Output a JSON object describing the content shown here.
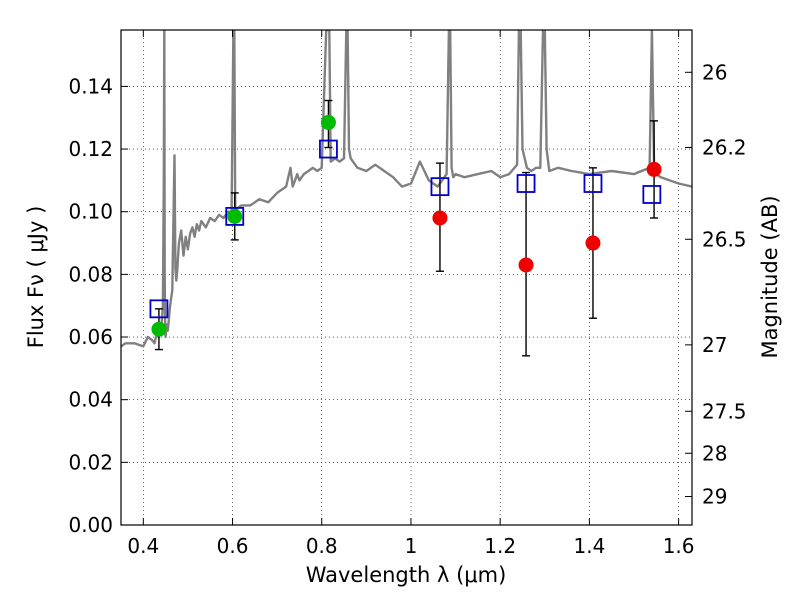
{
  "chart_data": {
    "type": "scatter",
    "xlabel": "Wavelength  λ (μm)",
    "ylabel": "Flux  Fν  ( μJy )",
    "y2label": "Magnitude (AB)",
    "xlim": [
      0.35,
      1.63
    ],
    "ylim": [
      0.0,
      0.158
    ],
    "grid": true,
    "xticks": [
      {
        "value": 0.4,
        "label": "0.4"
      },
      {
        "value": 0.6,
        "label": "0.6"
      },
      {
        "value": 0.8,
        "label": "0.8"
      },
      {
        "value": 1.0,
        "label": "1"
      },
      {
        "value": 1.2,
        "label": "1.2"
      },
      {
        "value": 1.4,
        "label": "1.4"
      },
      {
        "value": 1.6,
        "label": "1.6"
      }
    ],
    "yticks": [
      {
        "value": 0.0,
        "label": "0.00"
      },
      {
        "value": 0.02,
        "label": "0.02"
      },
      {
        "value": 0.04,
        "label": "0.04"
      },
      {
        "value": 0.06,
        "label": "0.06"
      },
      {
        "value": 0.08,
        "label": "0.08"
      },
      {
        "value": 0.1,
        "label": "0.10"
      },
      {
        "value": 0.12,
        "label": "0.12"
      },
      {
        "value": 0.14,
        "label": "0.14"
      }
    ],
    "y2ticks": [
      {
        "flux": 0.1445,
        "label": "26"
      },
      {
        "flux": 0.1205,
        "label": "26.2"
      },
      {
        "flux": 0.0912,
        "label": "26.5"
      },
      {
        "flux": 0.0575,
        "label": "27"
      },
      {
        "flux": 0.0363,
        "label": "27.5"
      },
      {
        "flux": 0.0229,
        "label": "28"
      },
      {
        "flux": 0.0091,
        "label": "29"
      }
    ],
    "series": [
      {
        "kind": "line",
        "color": "#808080",
        "x": [
          0.35,
          0.36,
          0.38,
          0.4,
          0.41,
          0.42,
          0.425,
          0.43,
          0.435,
          0.44,
          0.442,
          0.444,
          0.446,
          0.447,
          0.448,
          0.449,
          0.45,
          0.452,
          0.455,
          0.46,
          0.465,
          0.47,
          0.472,
          0.474,
          0.476,
          0.478,
          0.48,
          0.485,
          0.49,
          0.495,
          0.5,
          0.505,
          0.51,
          0.515,
          0.52,
          0.525,
          0.53,
          0.54,
          0.55,
          0.56,
          0.57,
          0.58,
          0.59,
          0.598,
          0.602,
          0.604,
          0.606,
          0.608,
          0.61,
          0.62,
          0.64,
          0.66,
          0.68,
          0.7,
          0.72,
          0.73,
          0.735,
          0.74,
          0.745,
          0.75,
          0.76,
          0.77,
          0.78,
          0.79,
          0.8,
          0.81,
          0.813,
          0.815,
          0.817,
          0.82,
          0.83,
          0.84,
          0.85,
          0.855,
          0.858,
          0.861,
          0.865,
          0.87,
          0.88,
          0.9,
          0.92,
          0.94,
          0.96,
          0.98,
          1.0,
          1.02,
          1.04,
          1.06,
          1.08,
          1.085,
          1.088,
          1.091,
          1.095,
          1.1,
          1.12,
          1.15,
          1.18,
          1.2,
          1.22,
          1.238,
          1.242,
          1.246,
          1.25,
          1.26,
          1.27,
          1.28,
          1.29,
          1.296,
          1.3,
          1.304,
          1.31,
          1.33,
          1.36,
          1.4,
          1.45,
          1.5,
          1.535,
          1.54,
          1.545,
          1.55,
          1.56,
          1.58,
          1.6,
          1.63
        ],
        "y": [
          0.057,
          0.058,
          0.058,
          0.057,
          0.06,
          0.059,
          0.058,
          0.061,
          0.06,
          0.062,
          0.066,
          0.07,
          0.11,
          0.158,
          0.08,
          0.062,
          0.06,
          0.064,
          0.062,
          0.07,
          0.075,
          0.118,
          0.082,
          0.078,
          0.081,
          0.086,
          0.09,
          0.094,
          0.086,
          0.092,
          0.088,
          0.093,
          0.095,
          0.092,
          0.096,
          0.094,
          0.097,
          0.095,
          0.098,
          0.097,
          0.099,
          0.098,
          0.1,
          0.1,
          0.158,
          0.158,
          0.102,
          0.1,
          0.101,
          0.102,
          0.102,
          0.104,
          0.103,
          0.106,
          0.108,
          0.114,
          0.108,
          0.11,
          0.112,
          0.11,
          0.112,
          0.113,
          0.114,
          0.113,
          0.114,
          0.158,
          0.158,
          0.158,
          0.158,
          0.116,
          0.117,
          0.116,
          0.117,
          0.158,
          0.158,
          0.12,
          0.117,
          0.116,
          0.114,
          0.113,
          0.115,
          0.113,
          0.111,
          0.108,
          0.109,
          0.116,
          0.11,
          0.108,
          0.112,
          0.158,
          0.158,
          0.114,
          0.111,
          0.112,
          0.111,
          0.112,
          0.113,
          0.111,
          0.112,
          0.115,
          0.158,
          0.158,
          0.12,
          0.114,
          0.113,
          0.114,
          0.114,
          0.158,
          0.158,
          0.12,
          0.113,
          0.114,
          0.113,
          0.112,
          0.113,
          0.112,
          0.114,
          0.158,
          0.114,
          0.112,
          0.111,
          0.11,
          0.109,
          0.108
        ]
      },
      {
        "kind": "markers",
        "marker": "square",
        "color": "#0000cc",
        "x": [
          0.435,
          0.605,
          0.815,
          1.065,
          1.258,
          1.408,
          1.54
        ],
        "y": [
          0.069,
          0.0985,
          0.12,
          0.108,
          0.109,
          0.109,
          0.1055
        ]
      },
      {
        "kind": "markers",
        "marker": "circle",
        "color": "#00bb00",
        "x": [
          0.435,
          0.605,
          0.815
        ],
        "y": [
          0.0625,
          0.0985,
          0.1285
        ],
        "err_low": [
          0.056,
          0.091,
          0.1205
        ],
        "err_high": [
          0.069,
          0.106,
          0.1355
        ]
      },
      {
        "kind": "markers",
        "marker": "circle",
        "color": "#ee0000",
        "x": [
          1.065,
          1.258,
          1.408,
          1.545
        ],
        "y": [
          0.098,
          0.083,
          0.09,
          0.1135
        ],
        "err_low": [
          0.081,
          0.054,
          0.066,
          0.098
        ],
        "err_high": [
          0.1155,
          0.1125,
          0.114,
          0.129
        ]
      }
    ]
  }
}
